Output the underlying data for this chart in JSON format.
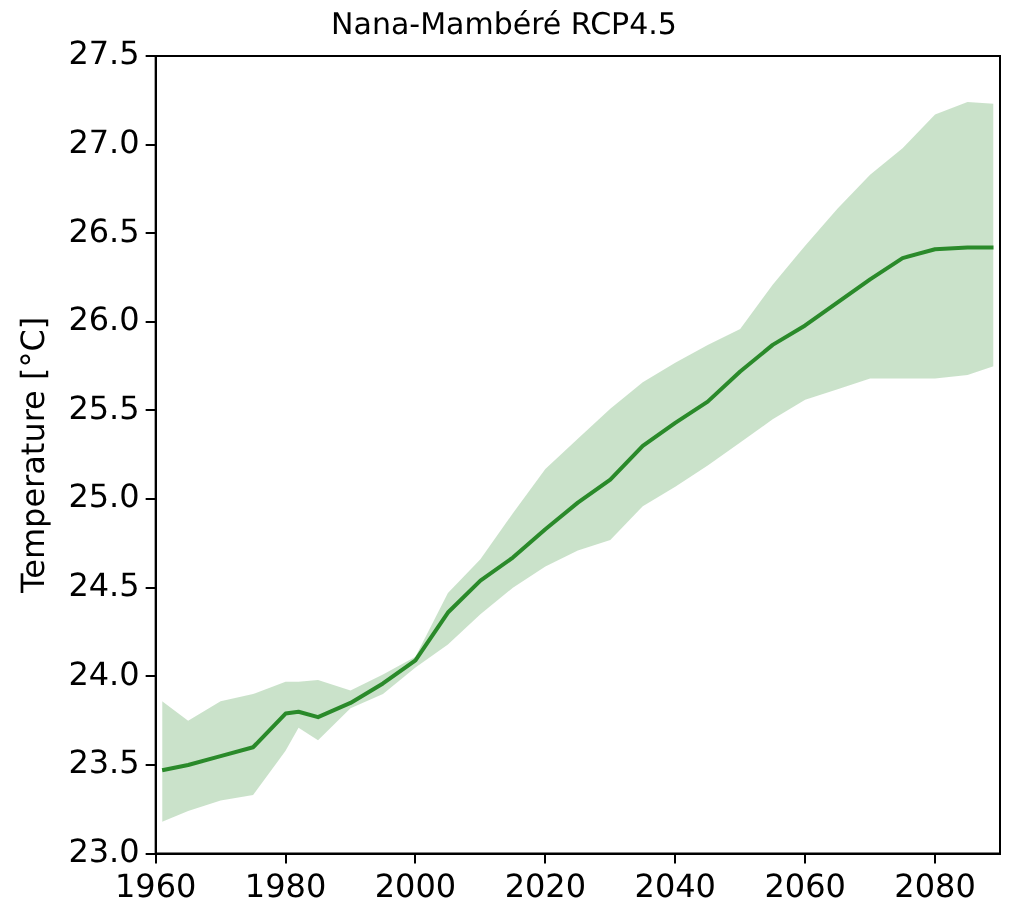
{
  "chart_data": {
    "type": "line",
    "title": "Nana-Mambéré RCP4.5",
    "ylabel": "Temperature [°C]",
    "x": [
      1961,
      1965,
      1970,
      1975,
      1980,
      1982,
      1985,
      1990,
      1995,
      2000,
      2005,
      2010,
      2015,
      2020,
      2025,
      2030,
      2035,
      2040,
      2045,
      2050,
      2055,
      2060,
      2065,
      2070,
      2075,
      2080,
      2085,
      2089
    ],
    "series": [
      {
        "color": "#2a8a2a",
        "values": [
          23.47,
          23.5,
          23.55,
          23.6,
          23.79,
          23.8,
          23.77,
          23.85,
          23.96,
          24.09,
          24.36,
          24.54,
          24.67,
          24.83,
          24.98,
          25.11,
          25.3,
          25.43,
          25.55,
          25.72,
          25.87,
          25.98,
          26.11,
          26.24,
          26.36,
          26.41,
          26.42,
          26.42
        ],
        "upper": [
          23.86,
          23.75,
          23.86,
          23.9,
          23.97,
          23.97,
          23.98,
          23.92,
          24.01,
          24.11,
          24.47,
          24.66,
          24.92,
          25.17,
          25.34,
          25.51,
          25.66,
          25.77,
          25.87,
          25.96,
          26.21,
          26.43,
          26.64,
          26.83,
          26.98,
          27.17,
          27.24,
          27.23
        ],
        "lower": [
          23.18,
          23.24,
          23.3,
          23.33,
          23.58,
          23.71,
          23.64,
          23.82,
          23.9,
          24.05,
          24.18,
          24.35,
          24.5,
          24.62,
          24.71,
          24.77,
          24.96,
          25.07,
          25.19,
          25.32,
          25.45,
          25.56,
          25.62,
          25.68,
          25.68,
          25.68,
          25.7,
          25.75
        ]
      }
    ],
    "xlim": [
      1960,
      2090
    ],
    "xticks": [
      1960,
      1980,
      2000,
      2020,
      2040,
      2060,
      2080
    ],
    "ylim": [
      23.0,
      27.5
    ],
    "yticks": [
      {
        "value": 23.0,
        "label": "23.0"
      },
      {
        "value": 23.5,
        "label": "23.5"
      },
      {
        "value": 24.0,
        "label": "24.0"
      },
      {
        "value": 24.5,
        "label": "24.5"
      },
      {
        "value": 25.0,
        "label": "25.0"
      },
      {
        "value": 25.5,
        "label": "25.5"
      },
      {
        "value": 26.0,
        "label": "26.0"
      },
      {
        "value": 26.5,
        "label": "26.5"
      },
      {
        "value": 27.0,
        "label": "27.0"
      },
      {
        "value": 27.5,
        "label": "27.5"
      }
    ],
    "grid": false,
    "legend": false,
    "marker": "none",
    "line_style": "solid"
  }
}
